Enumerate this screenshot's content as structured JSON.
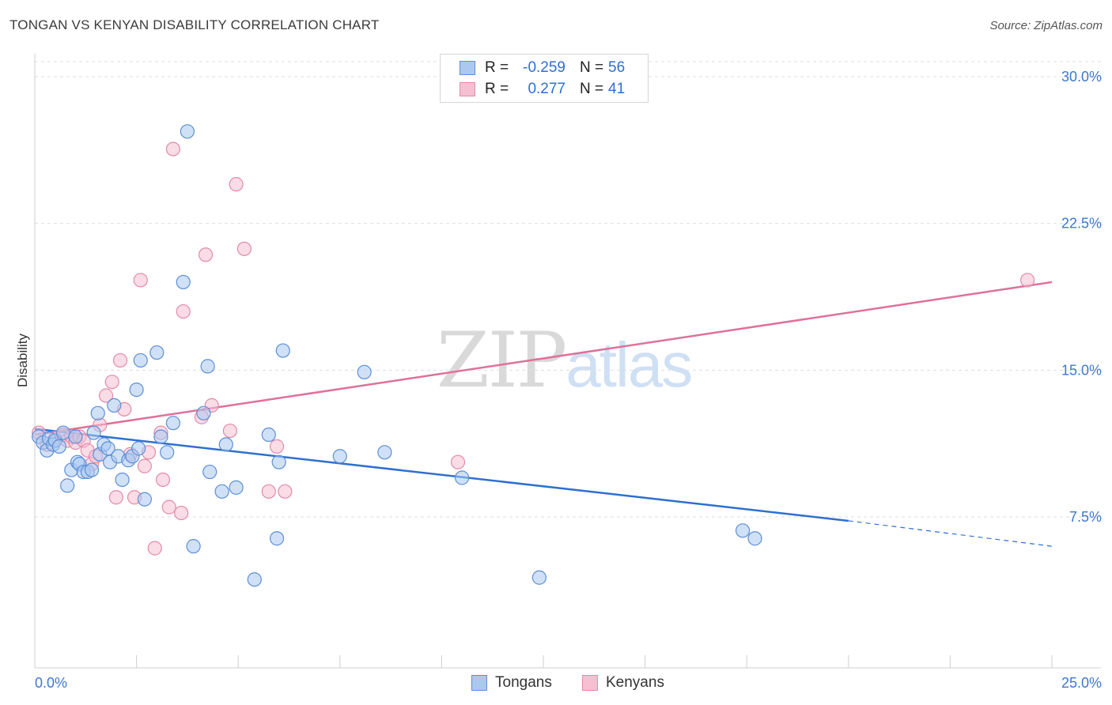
{
  "title": "TONGAN VS KENYAN DISABILITY CORRELATION CHART",
  "source": "Source: ZipAtlas.com",
  "watermark": {
    "zip": "ZIP",
    "atlas": "atlas"
  },
  "legend": {
    "rows": [
      {
        "r_label": "R =",
        "r_value": "-0.259",
        "n_label": "N =",
        "n_value": "56"
      },
      {
        "r_label": "R =",
        "r_value": "0.277",
        "n_label": "N =",
        "n_value": "41"
      }
    ],
    "bottom": [
      "Tongans",
      "Kenyans"
    ]
  },
  "colors": {
    "tongan_fill": "#aac8f0",
    "tongan_stroke": "#5c8fd6",
    "tongan_line": "#2f6fd0",
    "kenyan_fill": "#f6bfd2",
    "kenyan_stroke": "#e38aa9",
    "kenyan_line": "#e0709a",
    "tick_label": "#3b78d0",
    "grid": "#dedede"
  },
  "chart_data": {
    "type": "scatter",
    "title": "TONGAN VS KENYAN DISABILITY CORRELATION CHART",
    "xlabel": "",
    "ylabel": "Disability",
    "xlim": [
      0,
      25
    ],
    "ylim": [
      0,
      31
    ],
    "x_tick_labels": [
      {
        "value": 0,
        "label": "0.0%"
      },
      {
        "value": 25,
        "label": "25.0%"
      }
    ],
    "y_ticks": [
      {
        "value": 7.5,
        "label": "7.5%"
      },
      {
        "value": 15,
        "label": "15.0%"
      },
      {
        "value": 22.5,
        "label": "22.5%"
      },
      {
        "value": 30,
        "label": "30.0%"
      }
    ],
    "x_minor_ticks": [
      2.5,
      5,
      7.5,
      10,
      12.5,
      15,
      17.5,
      20,
      22.5,
      25
    ],
    "series": [
      {
        "name": "Tongans",
        "r": -0.259,
        "n": 56,
        "trend": {
          "x0": 0,
          "y0": 12.0,
          "x1": 20,
          "y1": 7.3,
          "dash_to_x": 25,
          "dash_to_y": 6.0
        },
        "points": [
          [
            0.1,
            11.6
          ],
          [
            0.2,
            11.3
          ],
          [
            0.3,
            10.9
          ],
          [
            0.35,
            11.5
          ],
          [
            0.45,
            11.2
          ],
          [
            0.5,
            11.4
          ],
          [
            0.6,
            11.1
          ],
          [
            0.7,
            11.8
          ],
          [
            0.8,
            9.1
          ],
          [
            0.9,
            9.9
          ],
          [
            1.0,
            11.6
          ],
          [
            1.05,
            10.3
          ],
          [
            1.1,
            10.2
          ],
          [
            1.2,
            9.8
          ],
          [
            1.3,
            9.8
          ],
          [
            1.4,
            9.9
          ],
          [
            1.45,
            11.8
          ],
          [
            1.55,
            12.8
          ],
          [
            1.6,
            10.7
          ],
          [
            1.7,
            11.2
          ],
          [
            1.8,
            11.0
          ],
          [
            1.85,
            10.3
          ],
          [
            1.95,
            13.2
          ],
          [
            2.05,
            10.6
          ],
          [
            2.15,
            9.4
          ],
          [
            2.3,
            10.4
          ],
          [
            2.4,
            10.6
          ],
          [
            2.5,
            14.0
          ],
          [
            2.55,
            11.0
          ],
          [
            2.6,
            15.5
          ],
          [
            2.7,
            8.4
          ],
          [
            3.0,
            15.9
          ],
          [
            3.1,
            11.6
          ],
          [
            3.25,
            10.8
          ],
          [
            3.4,
            12.3
          ],
          [
            3.65,
            19.5
          ],
          [
            3.75,
            27.2
          ],
          [
            3.9,
            6.0
          ],
          [
            4.15,
            12.8
          ],
          [
            4.25,
            15.2
          ],
          [
            4.3,
            9.8
          ],
          [
            4.6,
            8.8
          ],
          [
            4.7,
            11.2
          ],
          [
            4.95,
            9.0
          ],
          [
            5.4,
            4.3
          ],
          [
            5.75,
            11.7
          ],
          [
            5.95,
            6.4
          ],
          [
            6.0,
            10.3
          ],
          [
            6.1,
            16.0
          ],
          [
            7.5,
            10.6
          ],
          [
            8.1,
            14.9
          ],
          [
            8.6,
            10.8
          ],
          [
            10.5,
            9.5
          ],
          [
            12.4,
            4.4
          ],
          [
            17.4,
            6.8
          ],
          [
            17.7,
            6.4
          ]
        ]
      },
      {
        "name": "Kenyans",
        "r": 0.277,
        "n": 41,
        "trend": {
          "x0": 0,
          "y0": 11.7,
          "x1": 25,
          "y1": 19.5
        },
        "points": [
          [
            0.1,
            11.8
          ],
          [
            0.3,
            11.2
          ],
          [
            0.5,
            11.5
          ],
          [
            0.7,
            11.7
          ],
          [
            0.8,
            11.4
          ],
          [
            0.9,
            11.6
          ],
          [
            1.0,
            11.3
          ],
          [
            1.1,
            11.6
          ],
          [
            1.2,
            11.4
          ],
          [
            1.3,
            10.9
          ],
          [
            1.4,
            10.2
          ],
          [
            1.5,
            10.6
          ],
          [
            1.6,
            12.2
          ],
          [
            1.75,
            13.7
          ],
          [
            1.9,
            14.4
          ],
          [
            2.0,
            8.5
          ],
          [
            2.1,
            15.5
          ],
          [
            2.2,
            13.0
          ],
          [
            2.35,
            10.7
          ],
          [
            2.45,
            8.5
          ],
          [
            2.6,
            19.6
          ],
          [
            2.7,
            10.1
          ],
          [
            2.8,
            10.8
          ],
          [
            2.95,
            5.9
          ],
          [
            3.1,
            11.8
          ],
          [
            3.15,
            9.4
          ],
          [
            3.3,
            8.0
          ],
          [
            3.4,
            26.3
          ],
          [
            3.6,
            7.7
          ],
          [
            3.65,
            18.0
          ],
          [
            4.1,
            12.6
          ],
          [
            4.2,
            20.9
          ],
          [
            4.35,
            13.2
          ],
          [
            4.8,
            11.9
          ],
          [
            4.95,
            24.5
          ],
          [
            5.15,
            21.2
          ],
          [
            5.75,
            8.8
          ],
          [
            5.95,
            11.1
          ],
          [
            6.15,
            8.8
          ],
          [
            10.4,
            10.3
          ],
          [
            24.4,
            19.6
          ]
        ]
      }
    ]
  }
}
